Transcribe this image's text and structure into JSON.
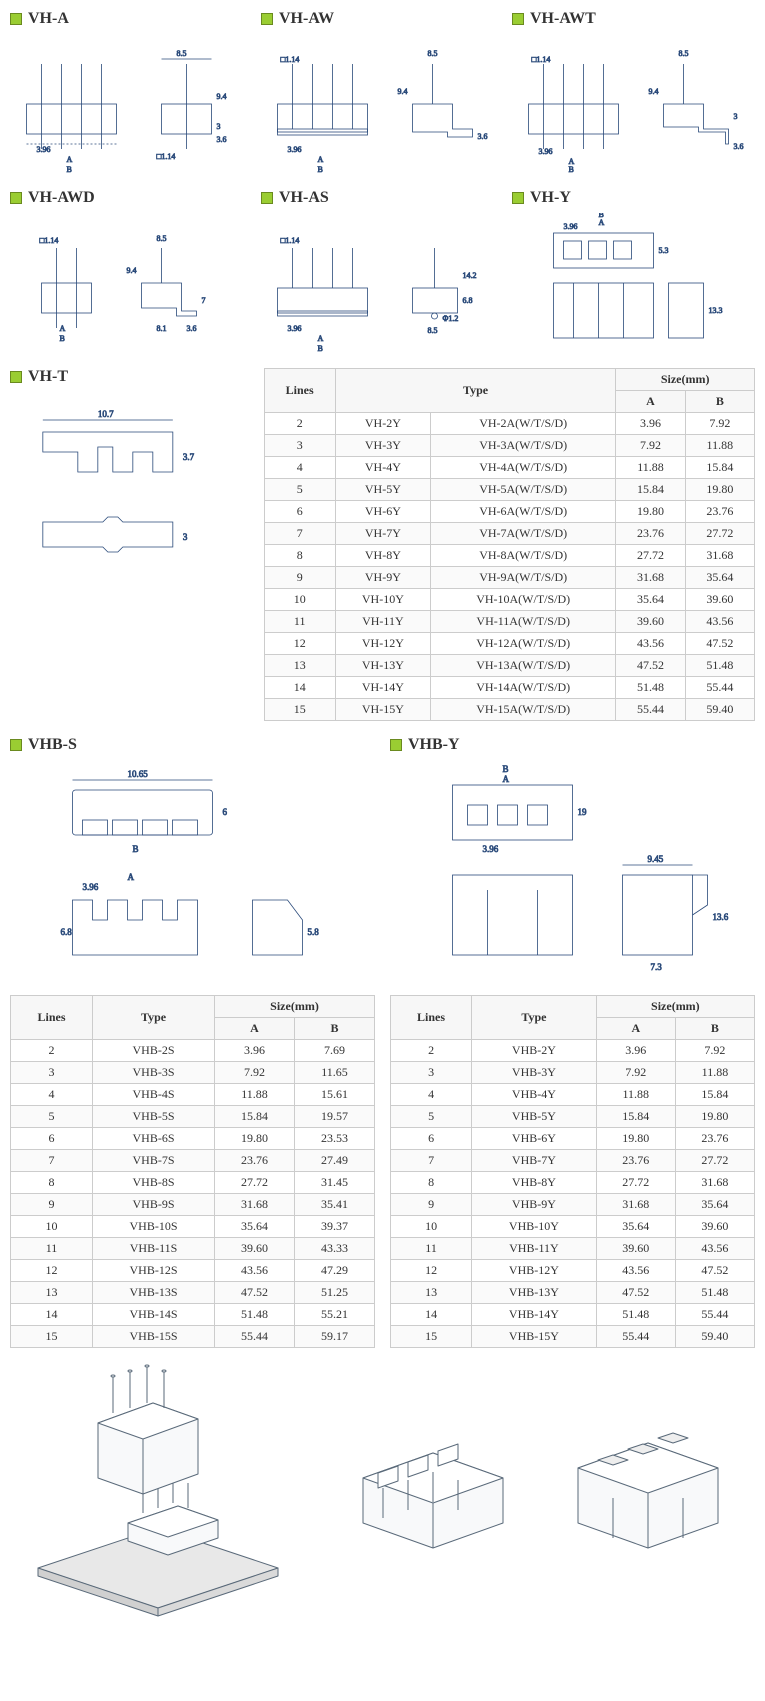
{
  "headings": {
    "vh_a": "VH-A",
    "vh_aw": "VH-AW",
    "vh_awt": "VH-AWT",
    "vh_awd": "VH-AWD",
    "vh_as": "VH-AS",
    "vh_y": "VH-Y",
    "vh_t": "VH-T",
    "vhb_s": "VHB-S",
    "vhb_y": "VHB-Y"
  },
  "dim_labels": {
    "a": "A",
    "b": "B",
    "d1_14": "□1.14",
    "d8_5": "8.5",
    "d9_4": "9.4",
    "d3_6": "3.6",
    "d3": "3",
    "d3_96": "3.96",
    "d8_1": "8.1",
    "d7": "7",
    "d13_3": "13.3",
    "d5_3": "5.3",
    "dphi1_2": "Φ1.2",
    "d14_2": "14.2",
    "d10_7": "10.7",
    "d3_7": "3.7",
    "d10_65": "10.65",
    "d6": "6",
    "d6_8": "6.8",
    "d5_8": "5.8",
    "d9_45": "9.45",
    "d13_6": "13.6",
    "d7_3": "7.3",
    "d19": "19"
  },
  "table_main": {
    "headers": {
      "lines": "Lines",
      "type": "Type",
      "size": "Size(mm)",
      "a": "A",
      "b": "B"
    },
    "rows": [
      {
        "lines": "2",
        "t1": "VH-2Y",
        "t2": "VH-2A(W/T/S/D)",
        "a": "3.96",
        "b": "7.92"
      },
      {
        "lines": "3",
        "t1": "VH-3Y",
        "t2": "VH-3A(W/T/S/D)",
        "a": "7.92",
        "b": "11.88"
      },
      {
        "lines": "4",
        "t1": "VH-4Y",
        "t2": "VH-4A(W/T/S/D)",
        "a": "11.88",
        "b": "15.84"
      },
      {
        "lines": "5",
        "t1": "VH-5Y",
        "t2": "VH-5A(W/T/S/D)",
        "a": "15.84",
        "b": "19.80"
      },
      {
        "lines": "6",
        "t1": "VH-6Y",
        "t2": "VH-6A(W/T/S/D)",
        "a": "19.80",
        "b": "23.76"
      },
      {
        "lines": "7",
        "t1": "VH-7Y",
        "t2": "VH-7A(W/T/S/D)",
        "a": "23.76",
        "b": "27.72"
      },
      {
        "lines": "8",
        "t1": "VH-8Y",
        "t2": "VH-8A(W/T/S/D)",
        "a": "27.72",
        "b": "31.68"
      },
      {
        "lines": "9",
        "t1": "VH-9Y",
        "t2": "VH-9A(W/T/S/D)",
        "a": "31.68",
        "b": "35.64"
      },
      {
        "lines": "10",
        "t1": "VH-10Y",
        "t2": "VH-10A(W/T/S/D)",
        "a": "35.64",
        "b": "39.60"
      },
      {
        "lines": "11",
        "t1": "VH-11Y",
        "t2": "VH-11A(W/T/S/D)",
        "a": "39.60",
        "b": "43.56"
      },
      {
        "lines": "12",
        "t1": "VH-12Y",
        "t2": "VH-12A(W/T/S/D)",
        "a": "43.56",
        "b": "47.52"
      },
      {
        "lines": "13",
        "t1": "VH-13Y",
        "t2": "VH-13A(W/T/S/D)",
        "a": "47.52",
        "b": "51.48"
      },
      {
        "lines": "14",
        "t1": "VH-14Y",
        "t2": "VH-14A(W/T/S/D)",
        "a": "51.48",
        "b": "55.44"
      },
      {
        "lines": "15",
        "t1": "VH-15Y",
        "t2": "VH-15A(W/T/S/D)",
        "a": "55.44",
        "b": "59.40"
      }
    ]
  },
  "table_vhbs": {
    "headers": {
      "lines": "Lines",
      "type": "Type",
      "size": "Size(mm)",
      "a": "A",
      "b": "B"
    },
    "rows": [
      {
        "lines": "2",
        "type": "VHB-2S",
        "a": "3.96",
        "b": "7.69"
      },
      {
        "lines": "3",
        "type": "VHB-3S",
        "a": "7.92",
        "b": "11.65"
      },
      {
        "lines": "4",
        "type": "VHB-4S",
        "a": "11.88",
        "b": "15.61"
      },
      {
        "lines": "5",
        "type": "VHB-5S",
        "a": "15.84",
        "b": "19.57"
      },
      {
        "lines": "6",
        "type": "VHB-6S",
        "a": "19.80",
        "b": "23.53"
      },
      {
        "lines": "7",
        "type": "VHB-7S",
        "a": "23.76",
        "b": "27.49"
      },
      {
        "lines": "8",
        "type": "VHB-8S",
        "a": "27.72",
        "b": "31.45"
      },
      {
        "lines": "9",
        "type": "VHB-9S",
        "a": "31.68",
        "b": "35.41"
      },
      {
        "lines": "10",
        "type": "VHB-10S",
        "a": "35.64",
        "b": "39.37"
      },
      {
        "lines": "11",
        "type": "VHB-11S",
        "a": "39.60",
        "b": "43.33"
      },
      {
        "lines": "12",
        "type": "VHB-12S",
        "a": "43.56",
        "b": "47.29"
      },
      {
        "lines": "13",
        "type": "VHB-13S",
        "a": "47.52",
        "b": "51.25"
      },
      {
        "lines": "14",
        "type": "VHB-14S",
        "a": "51.48",
        "b": "55.21"
      },
      {
        "lines": "15",
        "type": "VHB-15S",
        "a": "55.44",
        "b": "59.17"
      }
    ]
  },
  "table_vhby": {
    "headers": {
      "lines": "Lines",
      "type": "Type",
      "size": "Size(mm)",
      "a": "A",
      "b": "B"
    },
    "rows": [
      {
        "lines": "2",
        "type": "VHB-2Y",
        "a": "3.96",
        "b": "7.92"
      },
      {
        "lines": "3",
        "type": "VHB-3Y",
        "a": "7.92",
        "b": "11.88"
      },
      {
        "lines": "4",
        "type": "VHB-4Y",
        "a": "11.88",
        "b": "15.84"
      },
      {
        "lines": "5",
        "type": "VHB-5Y",
        "a": "15.84",
        "b": "19.80"
      },
      {
        "lines": "6",
        "type": "VHB-6Y",
        "a": "19.80",
        "b": "23.76"
      },
      {
        "lines": "7",
        "type": "VHB-7Y",
        "a": "23.76",
        "b": "27.72"
      },
      {
        "lines": "8",
        "type": "VHB-8Y",
        "a": "27.72",
        "b": "31.68"
      },
      {
        "lines": "9",
        "type": "VHB-9Y",
        "a": "31.68",
        "b": "35.64"
      },
      {
        "lines": "10",
        "type": "VHB-10Y",
        "a": "35.64",
        "b": "39.60"
      },
      {
        "lines": "11",
        "type": "VHB-11Y",
        "a": "39.60",
        "b": "43.56"
      },
      {
        "lines": "12",
        "type": "VHB-12Y",
        "a": "43.56",
        "b": "47.52"
      },
      {
        "lines": "13",
        "type": "VHB-13Y",
        "a": "47.52",
        "b": "51.48"
      },
      {
        "lines": "14",
        "type": "VHB-14Y",
        "a": "51.48",
        "b": "55.44"
      },
      {
        "lines": "15",
        "type": "VHB-15Y",
        "a": "55.44",
        "b": "59.40"
      }
    ]
  },
  "colors": {
    "bullet_fill": "#9acd32",
    "bullet_border": "#6a8a1f",
    "diagram_stroke": "#2a4a7a",
    "table_border": "#cccccc",
    "watermark": "#eeeeee"
  }
}
